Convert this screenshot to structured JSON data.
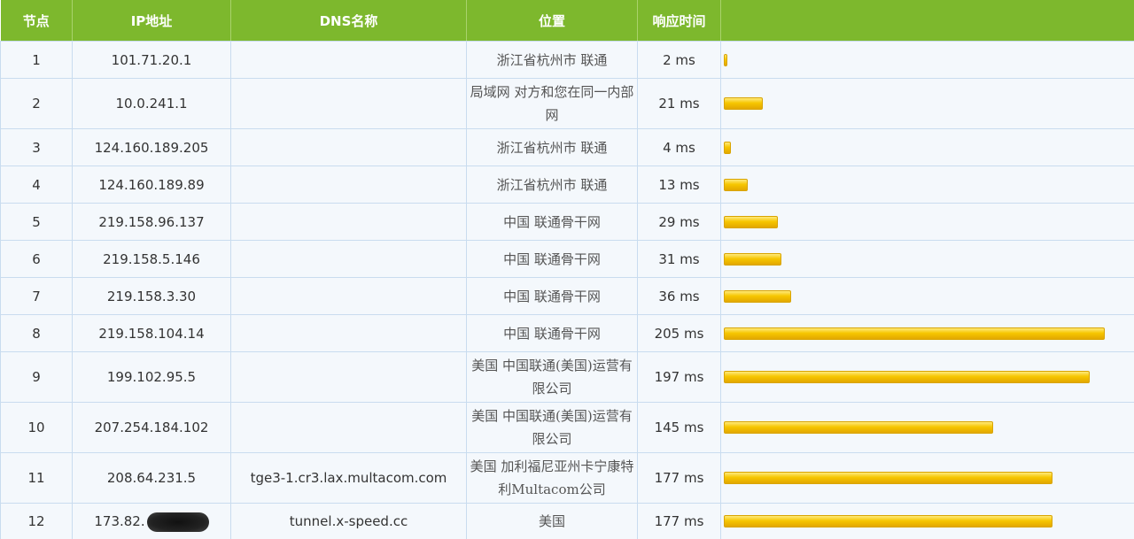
{
  "headers": {
    "node": "节点",
    "ip": "IP地址",
    "dns": "DNS名称",
    "location": "位置",
    "rtt": "响应时间",
    "bar": ""
  },
  "max_rtt_ms": 205,
  "rows": [
    {
      "node": "1",
      "ip": "101.71.20.1",
      "dns": "",
      "location": "浙江省杭州市 联通",
      "rtt": "2 ms",
      "rtt_ms": 2
    },
    {
      "node": "2",
      "ip": "10.0.241.1",
      "dns": "",
      "location": "局域网 对方和您在同一内部网",
      "rtt": "21 ms",
      "rtt_ms": 21
    },
    {
      "node": "3",
      "ip": "124.160.189.205",
      "dns": "",
      "location": "浙江省杭州市 联通",
      "rtt": "4 ms",
      "rtt_ms": 4
    },
    {
      "node": "4",
      "ip": "124.160.189.89",
      "dns": "",
      "location": "浙江省杭州市 联通",
      "rtt": "13 ms",
      "rtt_ms": 13
    },
    {
      "node": "5",
      "ip": "219.158.96.137",
      "dns": "",
      "location": "中国 联通骨干网",
      "rtt": "29 ms",
      "rtt_ms": 29
    },
    {
      "node": "6",
      "ip": "219.158.5.146",
      "dns": "",
      "location": "中国 联通骨干网",
      "rtt": "31 ms",
      "rtt_ms": 31
    },
    {
      "node": "7",
      "ip": "219.158.3.30",
      "dns": "",
      "location": "中国 联通骨干网",
      "rtt": "36 ms",
      "rtt_ms": 36
    },
    {
      "node": "8",
      "ip": "219.158.104.14",
      "dns": "",
      "location": "中国 联通骨干网",
      "rtt": "205 ms",
      "rtt_ms": 205
    },
    {
      "node": "9",
      "ip": "199.102.95.5",
      "dns": "",
      "location": "美国 中国联通(美国)运营有限公司",
      "rtt": "197 ms",
      "rtt_ms": 197
    },
    {
      "node": "10",
      "ip": "207.254.184.102",
      "dns": "",
      "location": "美国 中国联通(美国)运营有限公司",
      "rtt": "145 ms",
      "rtt_ms": 145
    },
    {
      "node": "11",
      "ip": "208.64.231.5",
      "dns": "tge3-1.cr3.lax.multacom.com",
      "location": "美国 加利福尼亚州卡宁康特利Multacom公司",
      "rtt": "177 ms",
      "rtt_ms": 177
    },
    {
      "node": "12",
      "ip": "173.82.",
      "dns": "tunnel.x-speed.cc",
      "location": "美国",
      "rtt": "177 ms",
      "rtt_ms": 177,
      "ip_redacted": true
    }
  ]
}
